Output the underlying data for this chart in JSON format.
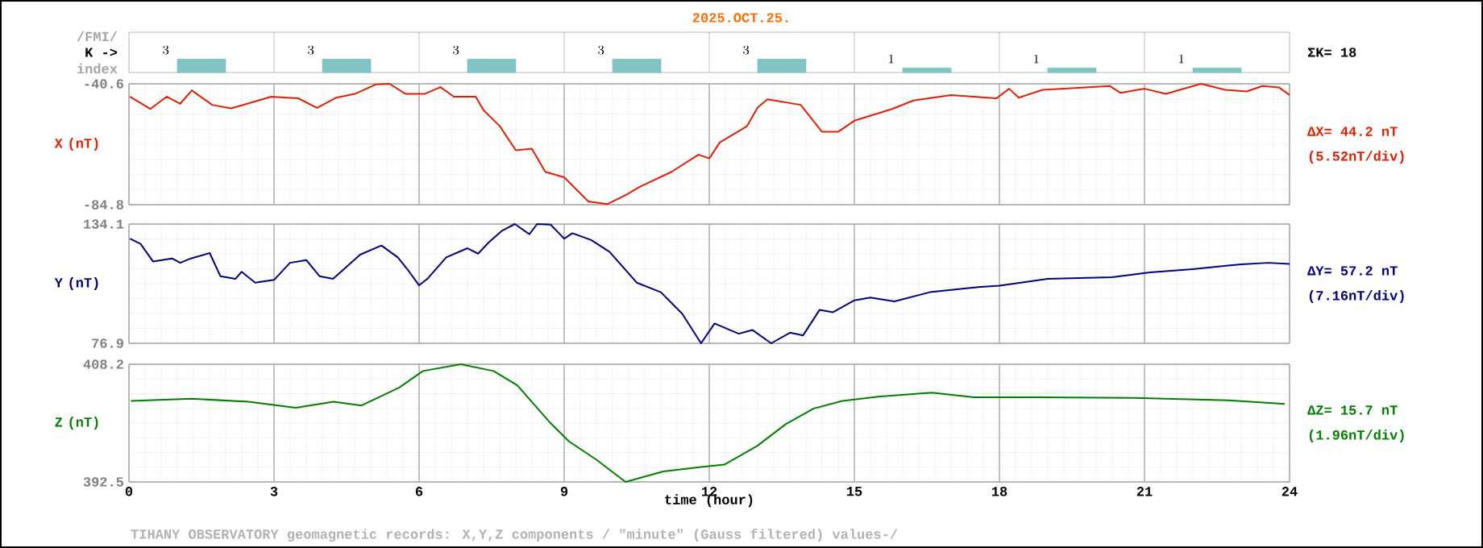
{
  "chart_data": [
    {
      "type": "bar",
      "title": "2025.OCT.25.",
      "categories": [
        null,
        null,
        null,
        null,
        null,
        null,
        null,
        null
      ],
      "values": [
        3,
        3,
        3,
        3,
        3,
        1,
        1,
        1
      ],
      "color": "#80c4c4",
      "data_labels": true,
      "tick_labels": false,
      "annotations": [
        "/FMI/",
        "K ->",
        "index",
        "ΣK= 18"
      ]
    },
    {
      "type": "line",
      "ylabel": "X (nT)",
      "xlim": [
        0,
        24
      ],
      "xticks": [
        0,
        3,
        6,
        9,
        12,
        15,
        18,
        21,
        24
      ],
      "ylim": [
        -84.8,
        -40.6
      ],
      "yticks": [
        -84.8,
        -40.6
      ],
      "grid": true,
      "tick_labels": "y",
      "annotations": [
        "ΔX= 44.2 nT",
        "(5.52nT/div)"
      ],
      "series": [
        {
          "color": "#e02000",
          "x": [
            0.02,
            0.44,
            0.78,
            1.06,
            1.3,
            1.72,
            2.11,
            2.56,
            2.94,
            3.5,
            3.89,
            4.28,
            4.67,
            5.11,
            5.39,
            5.72,
            6.11,
            6.44,
            6.72,
            7.17,
            7.33,
            7.67,
            8.0,
            8.33,
            8.61,
            9.0,
            9.5,
            9.89,
            10.28,
            10.56,
            11.22,
            11.78,
            12.0,
            12.22,
            12.78,
            13.0,
            13.2,
            13.89,
            14.33,
            14.67,
            15.0,
            15.78,
            16.22,
            17.0,
            17.94,
            18.2,
            18.4,
            18.89,
            19.78,
            20.28,
            20.5,
            21.0,
            21.44,
            22.17,
            22.67,
            23.11,
            23.44,
            23.78,
            24.0
          ],
          "values": [
            -45.3,
            -49.8,
            -45.3,
            -47.9,
            -43.0,
            -48.3,
            -49.6,
            -47.3,
            -45.3,
            -45.9,
            -49.4,
            -45.7,
            -44.3,
            -40.8,
            -40.6,
            -44.3,
            -44.3,
            -41.8,
            -45.3,
            -45.3,
            -50.2,
            -56.1,
            -64.9,
            -64.3,
            -72.8,
            -74.8,
            -83.6,
            -84.6,
            -81.2,
            -78.3,
            -72.8,
            -66.5,
            -67.9,
            -62.0,
            -56.1,
            -49.3,
            -46.3,
            -48.3,
            -58.1,
            -58.1,
            -54.1,
            -49.8,
            -46.7,
            -44.7,
            -45.9,
            -42.4,
            -45.7,
            -42.8,
            -41.9,
            -41.4,
            -43.9,
            -42.4,
            -44.3,
            -40.6,
            -42.8,
            -43.4,
            -41.4,
            -41.9,
            -44.7
          ]
        }
      ]
    },
    {
      "type": "line",
      "ylabel": "Y (nT)",
      "xlim": [
        0,
        24
      ],
      "xticks": [
        0,
        3,
        6,
        9,
        12,
        15,
        18,
        21,
        24
      ],
      "ylim": [
        76.9,
        134.1
      ],
      "yticks": [
        76.9,
        134.1
      ],
      "grid": true,
      "tick_labels": "y",
      "annotations": [
        "ΔY= 57.2 nT",
        "(7.16nT/div)"
      ],
      "series": [
        {
          "color": "#000080",
          "x": [
            0.02,
            0.24,
            0.5,
            0.89,
            1.06,
            1.28,
            1.67,
            1.89,
            2.2,
            2.33,
            2.61,
            3.0,
            3.33,
            3.67,
            3.94,
            4.22,
            4.78,
            5.22,
            5.56,
            5.78,
            6.0,
            6.17,
            6.56,
            7.0,
            7.22,
            7.44,
            7.72,
            7.98,
            8.28,
            8.44,
            8.72,
            9.0,
            9.17,
            9.56,
            9.94,
            10.5,
            11.0,
            11.44,
            11.83,
            12.11,
            12.61,
            12.89,
            13.28,
            13.67,
            13.94,
            14.28,
            14.56,
            15.0,
            15.33,
            15.83,
            16.56,
            17.56,
            18.0,
            19.0,
            20.33,
            21.11,
            22.0,
            23.0,
            23.56,
            24.0
          ],
          "values": [
            127.1,
            124.6,
            116.1,
            117.6,
            115.5,
            117.6,
            120.2,
            109.1,
            107.8,
            111.2,
            106.0,
            107.3,
            115.5,
            116.8,
            109.1,
            107.8,
            119.4,
            123.8,
            118.1,
            111.7,
            104.7,
            107.8,
            118.1,
            122.5,
            119.9,
            125.3,
            131.0,
            134.1,
            129.2,
            134.1,
            133.8,
            127.1,
            129.7,
            126.4,
            120.7,
            106.0,
            101.4,
            91.1,
            76.9,
            86.4,
            81.5,
            83.3,
            76.9,
            82.0,
            80.7,
            92.9,
            91.8,
            97.5,
            98.8,
            97.0,
            101.4,
            103.9,
            104.5,
            107.8,
            108.6,
            110.9,
            112.5,
            114.8,
            115.5,
            115.0
          ]
        }
      ]
    },
    {
      "type": "line",
      "ylabel": "Z (nT)",
      "xlabel": "time (hour)",
      "xlim": [
        0,
        24
      ],
      "xticks": [
        0,
        3,
        6,
        9,
        12,
        15,
        18,
        21,
        24
      ],
      "ylim": [
        392.5,
        408.2
      ],
      "yticks": [
        392.5,
        408.2
      ],
      "grid": true,
      "annotations": [
        "ΔZ= 15.7 nT",
        "(1.96nT/div)",
        "TIHANY OBSERVATORY   geomagnetic records:  X,Y,Z  components   / \"minute\" (Gauss filtered) values-/"
      ],
      "series": [
        {
          "color": "#008000",
          "x": [
            0.04,
            1.3,
            2.47,
            3.45,
            4.23,
            4.81,
            5.59,
            6.08,
            6.86,
            7.54,
            8.03,
            8.71,
            9.1,
            9.68,
            10.27,
            11.05,
            11.83,
            12.31,
            12.99,
            13.58,
            14.16,
            14.75,
            15.53,
            16.6,
            17.48,
            18.84,
            20.79,
            22.73,
            23.9
          ],
          "values": [
            403.3,
            403.6,
            403.2,
            402.4,
            403.2,
            402.7,
            405.1,
            407.3,
            408.2,
            407.3,
            405.4,
            400.4,
            397.9,
            395.4,
            392.5,
            393.9,
            394.5,
            394.8,
            397.3,
            400.2,
            402.3,
            403.3,
            403.9,
            404.4,
            403.8,
            403.8,
            403.7,
            403.4,
            402.9
          ]
        }
      ]
    }
  ]
}
